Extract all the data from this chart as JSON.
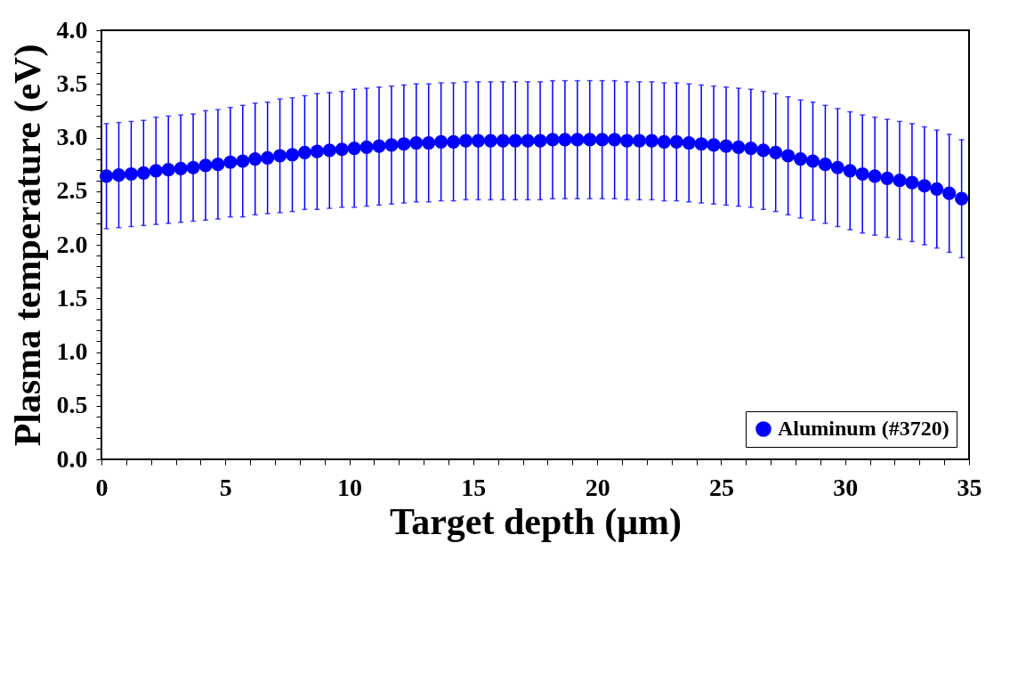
{
  "chart_data": {
    "type": "scatter",
    "xlabel": "Target depth (μm)",
    "ylabel": "Plasma temperature (eV)",
    "x": [
      0.2,
      0.7,
      1.2,
      1.7,
      2.2,
      2.7,
      3.2,
      3.7,
      4.2,
      4.7,
      5.2,
      5.7,
      6.2,
      6.7,
      7.2,
      7.7,
      8.2,
      8.7,
      9.2,
      9.7,
      10.2,
      10.7,
      11.2,
      11.7,
      12.2,
      12.7,
      13.2,
      13.7,
      14.2,
      14.7,
      15.2,
      15.7,
      16.2,
      16.7,
      17.2,
      17.7,
      18.2,
      18.7,
      19.2,
      19.7,
      20.2,
      20.7,
      21.2,
      21.7,
      22.2,
      22.7,
      23.2,
      23.7,
      24.2,
      24.7,
      25.2,
      25.7,
      26.2,
      26.7,
      27.2,
      27.7,
      28.2,
      28.7,
      29.2,
      29.7,
      30.2,
      30.7,
      31.2,
      31.7,
      32.2,
      32.7,
      33.2,
      33.7,
      34.2,
      34.7
    ],
    "series": [
      {
        "name": "Aluminum (#3720)",
        "color": "#0000ff",
        "values": [
          2.64,
          2.65,
          2.66,
          2.67,
          2.69,
          2.7,
          2.71,
          2.72,
          2.74,
          2.75,
          2.77,
          2.78,
          2.8,
          2.81,
          2.83,
          2.84,
          2.86,
          2.87,
          2.88,
          2.89,
          2.9,
          2.91,
          2.92,
          2.93,
          2.94,
          2.95,
          2.95,
          2.96,
          2.96,
          2.97,
          2.97,
          2.97,
          2.97,
          2.97,
          2.97,
          2.97,
          2.98,
          2.98,
          2.98,
          2.98,
          2.98,
          2.98,
          2.97,
          2.97,
          2.97,
          2.96,
          2.96,
          2.95,
          2.94,
          2.93,
          2.92,
          2.91,
          2.9,
          2.88,
          2.86,
          2.83,
          2.8,
          2.78,
          2.75,
          2.72,
          2.69,
          2.66,
          2.64,
          2.62,
          2.6,
          2.58,
          2.55,
          2.52,
          2.48,
          2.43
        ],
        "errors": [
          0.49,
          0.49,
          0.49,
          0.49,
          0.5,
          0.5,
          0.5,
          0.5,
          0.51,
          0.51,
          0.51,
          0.52,
          0.52,
          0.52,
          0.53,
          0.53,
          0.53,
          0.54,
          0.54,
          0.54,
          0.55,
          0.55,
          0.55,
          0.55,
          0.55,
          0.55,
          0.55,
          0.55,
          0.55,
          0.55,
          0.55,
          0.55,
          0.55,
          0.55,
          0.55,
          0.55,
          0.55,
          0.55,
          0.55,
          0.55,
          0.55,
          0.55,
          0.55,
          0.55,
          0.55,
          0.55,
          0.55,
          0.55,
          0.55,
          0.55,
          0.55,
          0.55,
          0.55,
          0.55,
          0.55,
          0.55,
          0.55,
          0.55,
          0.55,
          0.55,
          0.55,
          0.55,
          0.55,
          0.55,
          0.55,
          0.55,
          0.55,
          0.55,
          0.55,
          0.55
        ]
      }
    ],
    "xlim": [
      0,
      35
    ],
    "xticks": [
      0,
      {
        "value": 1,
        "label": null
      },
      {
        "value": 2,
        "label": null
      },
      {
        "value": 3,
        "label": null
      },
      {
        "value": 4,
        "label": null
      },
      5,
      {
        "value": 6,
        "label": null
      },
      {
        "value": 7,
        "label": null
      },
      {
        "value": 8,
        "label": null
      },
      {
        "value": 9,
        "label": null
      },
      10,
      {
        "value": 11,
        "label": null
      },
      {
        "value": 12,
        "label": null
      },
      {
        "value": 13,
        "label": null
      },
      {
        "value": 14,
        "label": null
      },
      15,
      {
        "value": 16,
        "label": null
      },
      {
        "value": 17,
        "label": null
      },
      {
        "value": 18,
        "label": null
      },
      {
        "value": 19,
        "label": null
      },
      20,
      {
        "value": 21,
        "label": null
      },
      {
        "value": 22,
        "label": null
      },
      {
        "value": 23,
        "label": null
      },
      {
        "value": 24,
        "label": null
      },
      25,
      {
        "value": 26,
        "label": null
      },
      {
        "value": 27,
        "label": null
      },
      {
        "value": 28,
        "label": null
      },
      {
        "value": 29,
        "label": null
      },
      30,
      {
        "value": 31,
        "label": null
      },
      {
        "value": 32,
        "label": null
      },
      {
        "value": 33,
        "label": null
      },
      {
        "value": 34,
        "label": null
      },
      35
    ],
    "ylim": [
      0,
      4
    ],
    "yticks": [
      {
        "value": 0,
        "label": "0.0"
      },
      {
        "value": 0.1,
        "label": null
      },
      {
        "value": 0.2,
        "label": null
      },
      {
        "value": 0.3,
        "label": null
      },
      {
        "value": 0.4,
        "label": null
      },
      {
        "value": 0.5,
        "label": "0.5"
      },
      {
        "value": 0.6,
        "label": null
      },
      {
        "value": 0.7,
        "label": null
      },
      {
        "value": 0.8,
        "label": null
      },
      {
        "value": 0.9,
        "label": null
      },
      {
        "value": 1,
        "label": "1.0"
      },
      {
        "value": 1.1,
        "label": null
      },
      {
        "value": 1.2,
        "label": null
      },
      {
        "value": 1.3,
        "label": null
      },
      {
        "value": 1.4,
        "label": null
      },
      {
        "value": 1.5,
        "label": "1.5"
      },
      {
        "value": 1.6,
        "label": null
      },
      {
        "value": 1.7,
        "label": null
      },
      {
        "value": 1.8,
        "label": null
      },
      {
        "value": 1.9,
        "label": null
      },
      {
        "value": 2,
        "label": "2.0"
      },
      {
        "value": 2.1,
        "label": null
      },
      {
        "value": 2.2,
        "label": null
      },
      {
        "value": 2.3,
        "label": null
      },
      {
        "value": 2.4,
        "label": null
      },
      {
        "value": 2.5,
        "label": "2.5"
      },
      {
        "value": 2.6,
        "label": null
      },
      {
        "value": 2.7,
        "label": null
      },
      {
        "value": 2.8,
        "label": null
      },
      {
        "value": 2.9,
        "label": null
      },
      {
        "value": 3,
        "label": "3.0"
      },
      {
        "value": 3.1,
        "label": null
      },
      {
        "value": 3.2,
        "label": null
      },
      {
        "value": 3.3,
        "label": null
      },
      {
        "value": 3.4,
        "label": null
      },
      {
        "value": 3.5,
        "label": "3.5"
      },
      {
        "value": 3.6,
        "label": null
      },
      {
        "value": 3.7,
        "label": null
      },
      {
        "value": 3.8,
        "label": null
      },
      {
        "value": 3.9,
        "label": null
      },
      {
        "value": 4,
        "label": "4.0"
      }
    ],
    "marker": "circle",
    "legend": "bottom right",
    "grid": false
  }
}
